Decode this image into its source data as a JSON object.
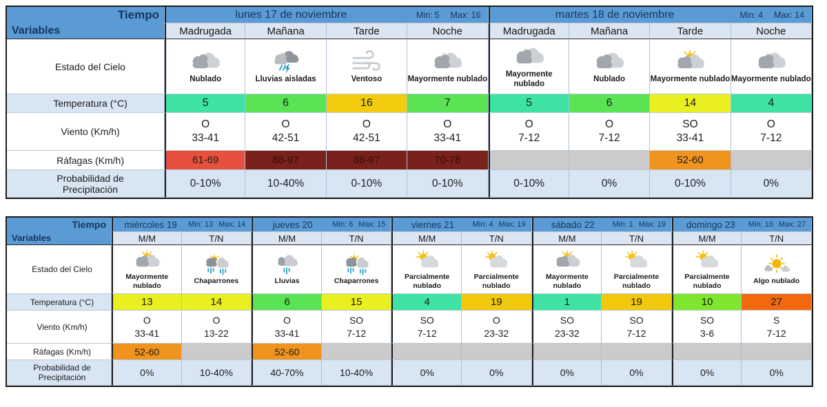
{
  "palette": {
    "header_blue": "#5B9BD5",
    "header_text_navy": "#15355C",
    "period_header_bg": "#DCE6F2",
    "label_blue_bg": "#D8E6F4",
    "empty_gust_gray": "#CBCBCB",
    "gust_red": "#E6503C",
    "gust_dark_red": "#7A211B",
    "gust_orange": "#F0941E"
  },
  "labels": {
    "corner_top": "Tiempo",
    "corner_bottom": "Variables",
    "sky": "Estado del Cielo",
    "temperature": "Temperatura (°C)",
    "wind": "Viento (Km/h)",
    "gusts": "Ráfagas (Km/h)",
    "precip_line1": "Probabilidad de",
    "precip_line2": "Precipitación",
    "min_label": "Min:",
    "max_label": "Max:"
  },
  "week1": {
    "days": [
      {
        "name": "lunes 17 de noviembre",
        "min": "5",
        "max": "16",
        "periods": [
          "Madrugada",
          "Mañana",
          "Tarde",
          "Noche"
        ]
      },
      {
        "name": "martes 18 de noviembre",
        "min": "4",
        "max": "14",
        "periods": [
          "Madrugada",
          "Mañana",
          "Tarde",
          "Noche"
        ]
      }
    ],
    "cols": [
      {
        "sky": "Nublado",
        "icon": "cloudy",
        "temp": "5",
        "temp_color": "#3EE3A4",
        "wind_dir": "O",
        "wind_rng": "33-41",
        "gust": "61-69",
        "gust_color": "#E6503C",
        "gust_text": "#1c1c1c",
        "precip": "0-10%"
      },
      {
        "sky": "Lluvias aisladas",
        "icon": "rain-isolated",
        "temp": "6",
        "temp_color": "#5BE356",
        "wind_dir": "O",
        "wind_rng": "42-51",
        "gust": "88-97",
        "gust_color": "#7A211B",
        "gust_text": "#330f0a",
        "precip": "10-40%"
      },
      {
        "sky": "Ventoso",
        "icon": "windy",
        "temp": "16",
        "temp_color": "#F2CC0D",
        "wind_dir": "O",
        "wind_rng": "42-51",
        "gust": "88-97",
        "gust_color": "#7A211B",
        "gust_text": "#330f0a",
        "precip": "0-10%"
      },
      {
        "sky": "Mayormente nublado",
        "icon": "mostly-cloudy",
        "temp": "7",
        "temp_color": "#5BE356",
        "wind_dir": "O",
        "wind_rng": "33-41",
        "gust": "70-78",
        "gust_color": "#7A211B",
        "gust_text": "#330f0a",
        "precip": "0-10%"
      },
      {
        "sky": "Mayormente nublado",
        "icon": "mostly-cloudy",
        "temp": "5",
        "temp_color": "#3EE3A4",
        "wind_dir": "O",
        "wind_rng": "7-12",
        "gust": "",
        "gust_color": "#CBCBCB",
        "gust_text": "#333333",
        "precip": "0-10%"
      },
      {
        "sky": "Nublado",
        "icon": "cloudy",
        "temp": "6",
        "temp_color": "#5BE356",
        "wind_dir": "O",
        "wind_rng": "7-12",
        "gust": "",
        "gust_color": "#CBCBCB",
        "gust_text": "#333333",
        "precip": "0%"
      },
      {
        "sky": "Mayormente nublado",
        "icon": "mostly-cloudy-sun",
        "temp": "14",
        "temp_color": "#EAF020",
        "wind_dir": "SO",
        "wind_rng": "33-41",
        "gust": "52-60",
        "gust_color": "#F0941E",
        "gust_text": "#1c1c1c",
        "precip": "0-10%"
      },
      {
        "sky": "Mayormente nublado",
        "icon": "mostly-cloudy",
        "temp": "4",
        "temp_color": "#3EE3A4",
        "wind_dir": "O",
        "wind_rng": "7-12",
        "gust": "",
        "gust_color": "#CBCBCB",
        "gust_text": "#333333",
        "precip": "0%"
      }
    ]
  },
  "week2": {
    "days": [
      {
        "name": "miércoles 19",
        "min": "13",
        "max": "14",
        "periods": [
          "M/M",
          "T/N"
        ]
      },
      {
        "name": "jueves 20",
        "min": "6",
        "max": "15",
        "periods": [
          "M/M",
          "T/N"
        ]
      },
      {
        "name": "viernes 21",
        "min": "4",
        "max": "19",
        "periods": [
          "M/M",
          "T/N"
        ]
      },
      {
        "name": "sábado 22",
        "min": "1",
        "max": "19",
        "periods": [
          "M/M",
          "T/N"
        ]
      },
      {
        "name": "domingo 23",
        "min": "10",
        "max": "27",
        "periods": [
          "M/M",
          "T/N"
        ]
      }
    ],
    "cols": [
      {
        "sky": "Mayormente nublado",
        "icon": "mostly-cloudy-sun",
        "temp": "13",
        "temp_color": "#EAF020",
        "wind_dir": "O",
        "wind_rng": "33-41",
        "gust": "52-60",
        "gust_color": "#F0941E",
        "gust_text": "#1c1c1c",
        "precip": "0%"
      },
      {
        "sky": "Chaparrones",
        "icon": "showers-sun",
        "temp": "14",
        "temp_color": "#EAF020",
        "wind_dir": "O",
        "wind_rng": "13-22",
        "gust": "",
        "gust_color": "#CBCBCB",
        "gust_text": "#333333",
        "precip": "10-40%"
      },
      {
        "sky": "Lluvias",
        "icon": "rain",
        "temp": "6",
        "temp_color": "#5BE356",
        "wind_dir": "O",
        "wind_rng": "33-41",
        "gust": "52-60",
        "gust_color": "#F0941E",
        "gust_text": "#1c1c1c",
        "precip": "40-70%"
      },
      {
        "sky": "Chaparrones",
        "icon": "showers-sun",
        "temp": "15",
        "temp_color": "#EAF020",
        "wind_dir": "SO",
        "wind_rng": "7-12",
        "gust": "",
        "gust_color": "#CBCBCB",
        "gust_text": "#333333",
        "precip": "10-40%"
      },
      {
        "sky": "Parcialmente nublado",
        "icon": "partly-cloudy",
        "temp": "4",
        "temp_color": "#3EE3A4",
        "wind_dir": "SO",
        "wind_rng": "7-12",
        "gust": "",
        "gust_color": "#CBCBCB",
        "gust_text": "#333333",
        "precip": "0%"
      },
      {
        "sky": "Parcialmente nublado",
        "icon": "partly-cloudy",
        "temp": "19",
        "temp_color": "#F2C80D",
        "wind_dir": "O",
        "wind_rng": "23-32",
        "gust": "",
        "gust_color": "#CBCBCB",
        "gust_text": "#333333",
        "precip": "0%"
      },
      {
        "sky": "Mayormente nublado",
        "icon": "mostly-cloudy-sun",
        "temp": "1",
        "temp_color": "#3EE3A4",
        "wind_dir": "SO",
        "wind_rng": "23-32",
        "gust": "",
        "gust_color": "#CBCBCB",
        "gust_text": "#333333",
        "precip": "0%"
      },
      {
        "sky": "Parcialmente nublado",
        "icon": "partly-cloudy",
        "temp": "19",
        "temp_color": "#F2C80D",
        "wind_dir": "SO",
        "wind_rng": "7-12",
        "gust": "",
        "gust_color": "#CBCBCB",
        "gust_text": "#333333",
        "precip": "0%"
      },
      {
        "sky": "Parcialmente nublado",
        "icon": "partly-cloudy",
        "temp": "10",
        "temp_color": "#7FE62E",
        "wind_dir": "SO",
        "wind_rng": "3-6",
        "gust": "",
        "gust_color": "#CBCBCB",
        "gust_text": "#333333",
        "precip": "0%"
      },
      {
        "sky": "Algo nublado",
        "icon": "sun-small-cloud",
        "temp": "27",
        "temp_color": "#F2680D",
        "wind_dir": "S",
        "wind_rng": "7-12",
        "gust": "",
        "gust_color": "#CBCBCB",
        "gust_text": "#333333",
        "precip": "0%"
      }
    ]
  },
  "chart_data": [
    {
      "type": "table",
      "title": "Pronóstico lunes 17 - martes 18 de noviembre",
      "columns": [
        "lunes Madrugada",
        "lunes Mañana",
        "lunes Tarde",
        "lunes Noche",
        "martes Madrugada",
        "martes Mañana",
        "martes Tarde",
        "martes Noche"
      ],
      "day_minmax": [
        {
          "day": "lunes 17 de noviembre",
          "min": 5,
          "max": 16
        },
        {
          "day": "martes 18 de noviembre",
          "min": 4,
          "max": 14
        }
      ],
      "rows": {
        "estado_del_cielo": [
          "Nublado",
          "Lluvias aisladas",
          "Ventoso",
          "Mayormente nublado",
          "Mayormente nublado",
          "Nublado",
          "Mayormente nublado",
          "Mayormente nublado"
        ],
        "temperatura_c": [
          5,
          6,
          16,
          7,
          5,
          6,
          14,
          4
        ],
        "viento_direccion": [
          "O",
          "O",
          "O",
          "O",
          "O",
          "O",
          "SO",
          "O"
        ],
        "viento_kmh": [
          "33-41",
          "42-51",
          "42-51",
          "33-41",
          "7-12",
          "7-12",
          "33-41",
          "7-12"
        ],
        "rafagas_kmh": [
          "61-69",
          "88-97",
          "88-97",
          "70-78",
          "",
          "",
          "52-60",
          ""
        ],
        "probabilidad_precipitacion": [
          "0-10%",
          "10-40%",
          "0-10%",
          "0-10%",
          "0-10%",
          "0%",
          "0-10%",
          "0%"
        ]
      }
    },
    {
      "type": "table",
      "title": "Pronóstico miércoles 19 - domingo 23",
      "columns": [
        "miércoles M/M",
        "miércoles T/N",
        "jueves M/M",
        "jueves T/N",
        "viernes M/M",
        "viernes T/N",
        "sábado M/M",
        "sábado T/N",
        "domingo M/M",
        "domingo T/N"
      ],
      "day_minmax": [
        {
          "day": "miércoles 19",
          "min": 13,
          "max": 14
        },
        {
          "day": "jueves 20",
          "min": 6,
          "max": 15
        },
        {
          "day": "viernes 21",
          "min": 4,
          "max": 19
        },
        {
          "day": "sábado 22",
          "min": 1,
          "max": 19
        },
        {
          "day": "domingo 23",
          "min": 10,
          "max": 27
        }
      ],
      "rows": {
        "estado_del_cielo": [
          "Mayormente nublado",
          "Chaparrones",
          "Lluvias",
          "Chaparrones",
          "Parcialmente nublado",
          "Parcialmente nublado",
          "Mayormente nublado",
          "Parcialmente nublado",
          "Parcialmente nublado",
          "Algo nublado"
        ],
        "temperatura_c": [
          13,
          14,
          6,
          15,
          4,
          19,
          1,
          19,
          10,
          27
        ],
        "viento_direccion": [
          "O",
          "O",
          "O",
          "SO",
          "SO",
          "O",
          "SO",
          "SO",
          "SO",
          "S"
        ],
        "viento_kmh": [
          "33-41",
          "13-22",
          "33-41",
          "7-12",
          "7-12",
          "23-32",
          "23-32",
          "7-12",
          "3-6",
          "7-12"
        ],
        "rafagas_kmh": [
          "52-60",
          "",
          "52-60",
          "",
          "",
          "",
          "",
          "",
          "",
          ""
        ],
        "probabilidad_precipitacion": [
          "0%",
          "10-40%",
          "40-70%",
          "10-40%",
          "0%",
          "0%",
          "0%",
          "0%",
          "0%",
          "0%"
        ]
      }
    }
  ]
}
